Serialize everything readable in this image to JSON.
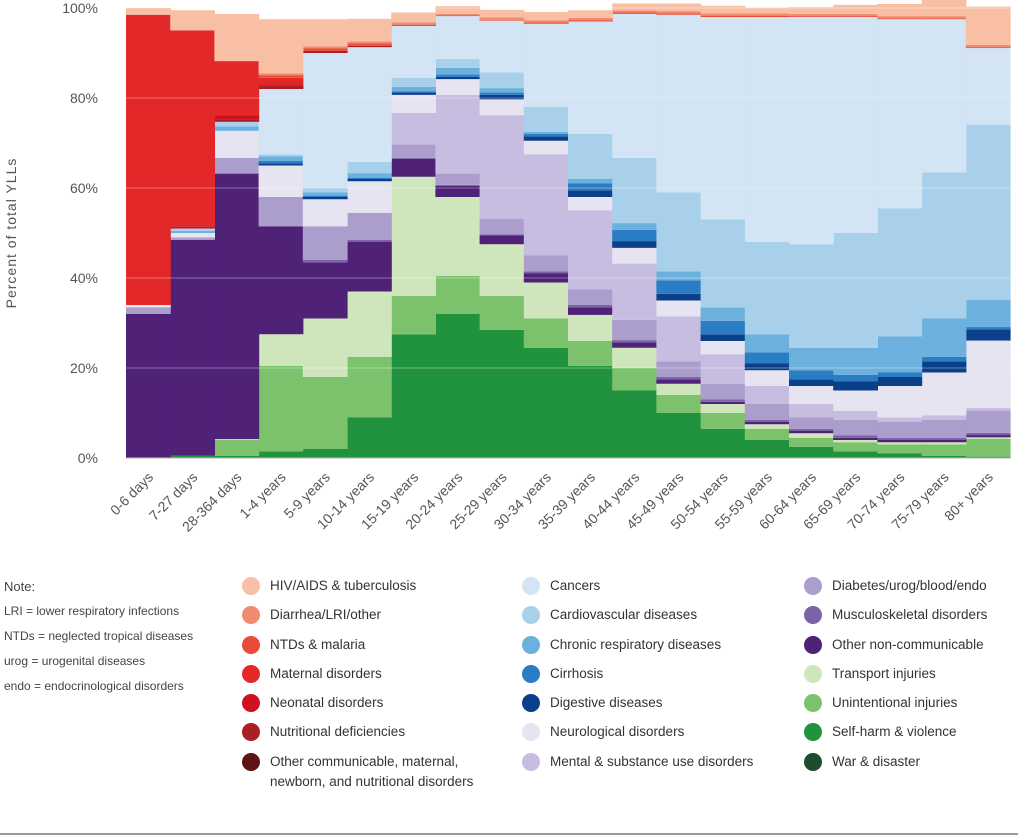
{
  "chart_data": {
    "type": "area",
    "stacked": true,
    "step": true,
    "ylabel": "Percent of total YLLs",
    "ylim": [
      0,
      100
    ],
    "y_ticks": [
      "0%",
      "20%",
      "40%",
      "60%",
      "80%",
      "100%"
    ],
    "categories": [
      "0-6 days",
      "7-27 days",
      "28-364 days",
      "1-4 years",
      "5-9 years",
      "10-14 years",
      "15-19 years",
      "20-24 years",
      "25-29 years",
      "30-34 years",
      "35-39 years",
      "40-44 years",
      "45-49 years",
      "50-54 years",
      "55-59 years",
      "60-64 years",
      "65-69 years",
      "70-74 years",
      "75-79 years",
      "80+ years"
    ],
    "series": [
      {
        "name": "War & disaster",
        "color": "#1e4d2b",
        "values": [
          0,
          0,
          0,
          0,
          0,
          0,
          0,
          0,
          0,
          0,
          0,
          0,
          0,
          0,
          0,
          0,
          0,
          0,
          0,
          0
        ]
      },
      {
        "name": "Self-harm & violence",
        "color": "#21933f",
        "values": [
          0,
          0.5,
          0.5,
          1.5,
          2,
          9,
          27.5,
          32,
          28.5,
          24.5,
          20.5,
          15,
          10,
          6.5,
          4,
          2.5,
          1.5,
          1,
          0.5,
          0.3
        ]
      },
      {
        "name": "Unintentional injuries",
        "color": "#7cc26c",
        "values": [
          0,
          0,
          3.5,
          19,
          16,
          13.5,
          8.5,
          8.5,
          7.5,
          6.5,
          5.5,
          5,
          4,
          3.5,
          2.5,
          2,
          2,
          2,
          2.5,
          4
        ]
      },
      {
        "name": "Transport injuries",
        "color": "#cfe6bc",
        "values": [
          0,
          0,
          0.2,
          7,
          13,
          14.5,
          26.5,
          17.5,
          11.5,
          8,
          5.8,
          4.5,
          2.5,
          2,
          1,
          1,
          0.5,
          0.5,
          0.5,
          0.3
        ]
      },
      {
        "name": "Other non-communicable",
        "color": "#4f2177",
        "values": [
          32,
          48,
          59,
          24,
          12.5,
          11,
          4,
          2.5,
          2,
          2,
          1.7,
          1.2,
          1,
          0.5,
          0.5,
          0.5,
          0.5,
          0.5,
          0.5,
          0.5
        ]
      },
      {
        "name": "Musculoskeletal disorders",
        "color": "#7e62a8",
        "values": [
          0,
          0,
          0,
          0,
          0.5,
          0.5,
          0.2,
          0.2,
          0.2,
          0.5,
          0.5,
          0.5,
          0.5,
          0.5,
          0.5,
          0.5,
          0.5,
          0.5,
          0.5,
          0.5
        ]
      },
      {
        "name": "Diabetes/urog/blood/endo",
        "color": "#ab9dcc",
        "values": [
          1.5,
          0.5,
          3.5,
          6.5,
          7.5,
          6,
          3,
          2.5,
          3.5,
          3.5,
          3.5,
          4.5,
          3.5,
          3.5,
          3.5,
          2.5,
          3.5,
          3.5,
          4,
          5
        ]
      },
      {
        "name": "Mental & substance use disorders",
        "color": "#c7bde0",
        "values": [
          0,
          0,
          0,
          0,
          0,
          0,
          7,
          17.5,
          23,
          22.5,
          17.5,
          12.5,
          10,
          6.5,
          4,
          3,
          2,
          1,
          1,
          0.5
        ]
      },
      {
        "name": "Neurological disorders",
        "color": "#e7e4f2",
        "values": [
          0.5,
          1,
          6,
          7,
          6,
          7,
          4,
          3.5,
          3.5,
          3,
          3,
          3.5,
          3.5,
          3,
          3.5,
          4,
          4.5,
          7,
          9.5,
          15
        ]
      },
      {
        "name": "Digestive diseases",
        "color": "#0b3f8a",
        "values": [
          0,
          0,
          0,
          0.5,
          0.5,
          0.5,
          0.5,
          0.5,
          1,
          1,
          1.5,
          1.5,
          1.5,
          1.5,
          1.5,
          1.5,
          2,
          2,
          2.5,
          2.5
        ]
      },
      {
        "name": "Cirrhosis",
        "color": "#2a7cc4",
        "values": [
          0,
          0,
          0,
          0.5,
          0.3,
          0.3,
          0.3,
          0.5,
          0.5,
          0.5,
          1.5,
          2.5,
          3,
          3,
          2.5,
          2,
          1.5,
          1,
          1,
          0.5
        ]
      },
      {
        "name": "Chronic respiratory diseases",
        "color": "#6cb0de",
        "values": [
          0,
          0.5,
          1,
          1,
          0.7,
          1,
          1,
          1.5,
          1,
          0.5,
          1,
          1.5,
          2,
          3,
          4,
          5,
          6,
          8,
          8.5,
          6
        ]
      },
      {
        "name": "Cardiovascular diseases",
        "color": "#a9d0eb",
        "values": [
          0,
          0.5,
          1,
          0.5,
          1,
          2.5,
          2,
          2,
          3.5,
          5.5,
          10,
          14.5,
          17.5,
          19.5,
          20.5,
          23,
          25.5,
          28.5,
          32.5,
          39
        ]
      },
      {
        "name": "Cancers",
        "color": "#d3e4f4",
        "values": [
          0,
          0,
          0,
          14.5,
          30,
          25.5,
          11.5,
          9.5,
          11.5,
          18.5,
          25,
          32,
          39.5,
          45,
          50,
          50.5,
          48,
          42,
          34,
          17
        ]
      },
      {
        "name": "Other communicable, maternal, newborn, and nutritional disorders",
        "color": "#5e1414",
        "values": [
          0,
          0,
          0,
          0,
          0,
          0,
          0,
          0,
          0,
          0,
          0,
          0,
          0,
          0,
          0,
          0,
          0,
          0,
          0,
          0
        ]
      },
      {
        "name": "Nutritional deficiencies",
        "color": "#a91f23",
        "values": [
          0,
          0,
          0.5,
          0.7,
          0.5,
          0.3,
          0,
          0,
          0,
          0,
          0,
          0,
          0,
          0,
          0,
          0,
          0,
          0,
          0,
          0
        ]
      },
      {
        "name": "Neonatal disorders",
        "color": "#cf1020",
        "values": [
          0,
          0.5,
          1,
          0.3,
          0,
          0,
          0,
          0,
          0,
          0,
          0,
          0,
          0,
          0,
          0,
          0,
          0,
          0,
          0,
          0
        ]
      },
      {
        "name": "Maternal disorders",
        "color": "#e3282a",
        "values": [
          64.5,
          43.5,
          12,
          1.5,
          0,
          0,
          0,
          0,
          0,
          0,
          0,
          0,
          0,
          0,
          0,
          0,
          0,
          0,
          0,
          0
        ]
      },
      {
        "name": "NTDs & malaria",
        "color": "#ea4a38",
        "values": [
          0,
          0,
          0,
          0.5,
          0.5,
          0.5,
          0.3,
          0.2,
          0.2,
          0.3,
          0.3,
          0.3,
          0.3,
          0.3,
          0.3,
          0.2,
          0.2,
          0.2,
          0.2,
          0.2
        ]
      },
      {
        "name": "Diarrhea/LRI/other",
        "color": "#f08c6e",
        "values": [
          0,
          0,
          0,
          0.5,
          0.5,
          0.5,
          0.5,
          0.3,
          0.5,
          0.5,
          0.5,
          0.5,
          0.5,
          0.5,
          0.5,
          0.5,
          0.5,
          0.5,
          0.5,
          0.5
        ]
      },
      {
        "name": "HIV/AIDS & tuberculosis",
        "color": "#f9bfa4",
        "values": [
          1.5,
          4.5,
          10.5,
          12,
          6,
          5,
          2.2,
          1.7,
          1.7,
          1.8,
          1.7,
          1.5,
          1.7,
          1.7,
          1.3,
          1.5,
          2,
          2.7,
          4,
          8.5
        ]
      }
    ]
  },
  "note": {
    "title": "Note:",
    "lines": [
      "LRI = lower respiratory infections",
      "NTDs = neglected tropical diseases",
      "urog = urogenital diseases",
      "endo = endocrinological disorders"
    ]
  },
  "legend": {
    "columns": [
      [
        {
          "label": "HIV/AIDS & tuberculosis",
          "color": "#f9bfa4"
        },
        {
          "label": "Diarrhea/LRI/other",
          "color": "#f08c6e"
        },
        {
          "label": "NTDs & malaria",
          "color": "#ea4a38"
        },
        {
          "label": "Maternal disorders",
          "color": "#e3282a"
        },
        {
          "label": "Neonatal disorders",
          "color": "#cf1020"
        },
        {
          "label": "Nutritional deficiencies",
          "color": "#a91f23"
        },
        {
          "label": "Other communicable, maternal,\nnewborn, and nutritional disorders",
          "color": "#5e1414"
        }
      ],
      [
        {
          "label": "Cancers",
          "color": "#d3e4f4"
        },
        {
          "label": "Cardiovascular diseases",
          "color": "#a9d0eb"
        },
        {
          "label": "Chronic respiratory diseases",
          "color": "#6cb0de"
        },
        {
          "label": "Cirrhosis",
          "color": "#2a7cc4"
        },
        {
          "label": "Digestive diseases",
          "color": "#0b3f8a"
        },
        {
          "label": "Neurological disorders",
          "color": "#e7e4f2"
        },
        {
          "label": "Mental & substance use disorders",
          "color": "#c7bde0"
        }
      ],
      [
        {
          "label": "Diabetes/urog/blood/endo",
          "color": "#ab9dcc"
        },
        {
          "label": "Musculoskeletal disorders",
          "color": "#7e62a8"
        },
        {
          "label": "Other non-communicable",
          "color": "#4f2177"
        },
        {
          "label": "Transport injuries",
          "color": "#cfe6bc"
        },
        {
          "label": "Unintentional injuries",
          "color": "#7cc26c"
        },
        {
          "label": "Self-harm & violence",
          "color": "#21933f"
        },
        {
          "label": "War & disaster",
          "color": "#1e4d2b"
        }
      ]
    ]
  }
}
